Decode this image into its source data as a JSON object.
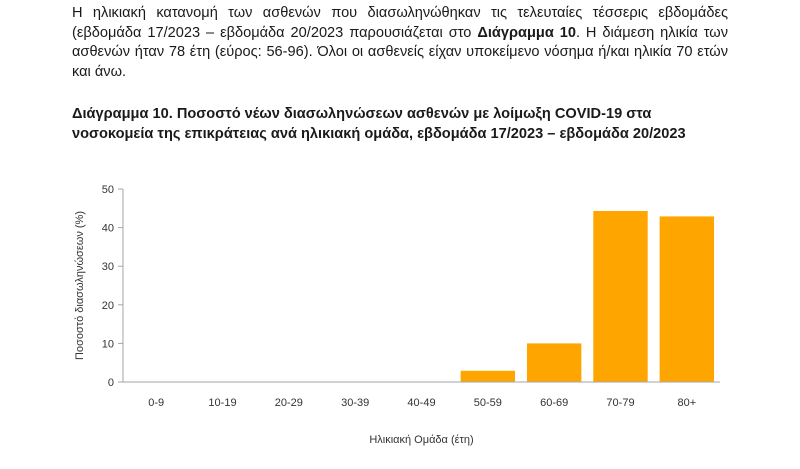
{
  "text": {
    "paragraph_part1": "Η ηλικιακή κατανομή των ασθενών που διασωληνώθηκαν τις τελευταίες τέσσερις εβδομάδες (εβδομάδα 17/2023 – εβδομάδα 20/2023 παρουσιάζεται στο ",
    "paragraph_bold": "Διάγραμμα 10",
    "paragraph_part2": ". Η διάμεση ηλικία των ασθενών ήταν 78 έτη (εύρος: 56-96). Όλοι οι ασθενείς είχαν υποκείμενο νόσημα ή/και ηλικία 70 ετών και άνω.",
    "figure_title": "Διάγραμμα 10. Ποσοστό νέων διασωληνώσεων ασθενών με λοίμωξη COVID-19 στα νοσοκομεία της επικράτειας ανά ηλικιακή ομάδα, εβδομάδα 17/2023 – εβδομάδα 20/2023"
  },
  "chart_data": {
    "type": "bar",
    "categories": [
      "0-9",
      "10-19",
      "20-29",
      "30-39",
      "40-49",
      "50-59",
      "60-69",
      "70-79",
      "80+"
    ],
    "values": [
      0,
      0,
      0,
      0,
      0,
      2.9,
      10.0,
      44.3,
      42.9
    ],
    "xlabel": "Ηλικιακή Ομάδα (έτη)",
    "ylabel": "Ποσοστό διασωληνώσεων (%)",
    "ylim": [
      0,
      50
    ],
    "yticks": [
      0,
      10,
      20,
      30,
      40,
      50
    ],
    "bar_color": "#FFA500",
    "axis_color": "#A6A6A6",
    "grid": false,
    "legend": "none"
  }
}
